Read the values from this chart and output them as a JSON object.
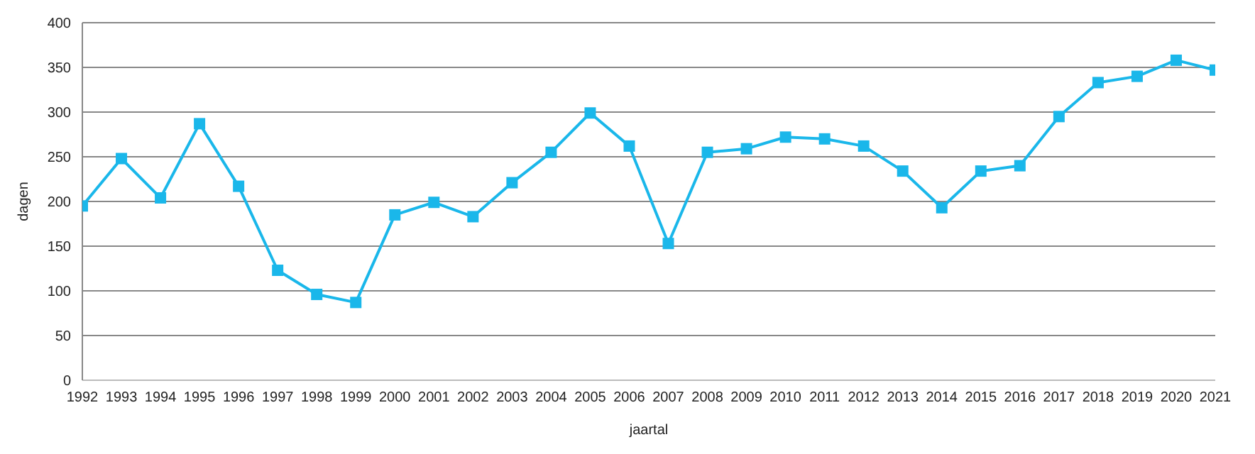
{
  "chart_data": {
    "type": "line",
    "xlabel": "jaartal",
    "ylabel": "dagen",
    "x": [
      1992,
      1993,
      1994,
      1995,
      1996,
      1997,
      1998,
      1999,
      2000,
      2001,
      2002,
      2003,
      2004,
      2005,
      2006,
      2007,
      2008,
      2009,
      2010,
      2011,
      2012,
      2013,
      2014,
      2015,
      2016,
      2017,
      2018,
      2019,
      2020,
      2021
    ],
    "xlim": [
      1992,
      2021
    ],
    "xticks": [
      1992,
      1993,
      1994,
      1995,
      1996,
      1997,
      1998,
      1999,
      2000,
      2001,
      2002,
      2003,
      2004,
      2005,
      2006,
      2007,
      2008,
      2009,
      2010,
      2011,
      2012,
      2013,
      2014,
      2015,
      2016,
      2017,
      2018,
      2019,
      2020,
      2021
    ],
    "series": [
      {
        "color": "#1ab7ea",
        "values": [
          195,
          248,
          204,
          287,
          217,
          123,
          96,
          87,
          185,
          199,
          183,
          221,
          255,
          299,
          262,
          153,
          255,
          259,
          272,
          270,
          262,
          234,
          193,
          234,
          240,
          295,
          333,
          340,
          358,
          347
        ]
      }
    ],
    "ylim": [
      0,
      400
    ],
    "yticks": [
      0,
      50,
      100,
      150,
      200,
      250,
      300,
      350,
      400
    ],
    "grid": "y",
    "marker": "square",
    "line_style": "solid"
  }
}
